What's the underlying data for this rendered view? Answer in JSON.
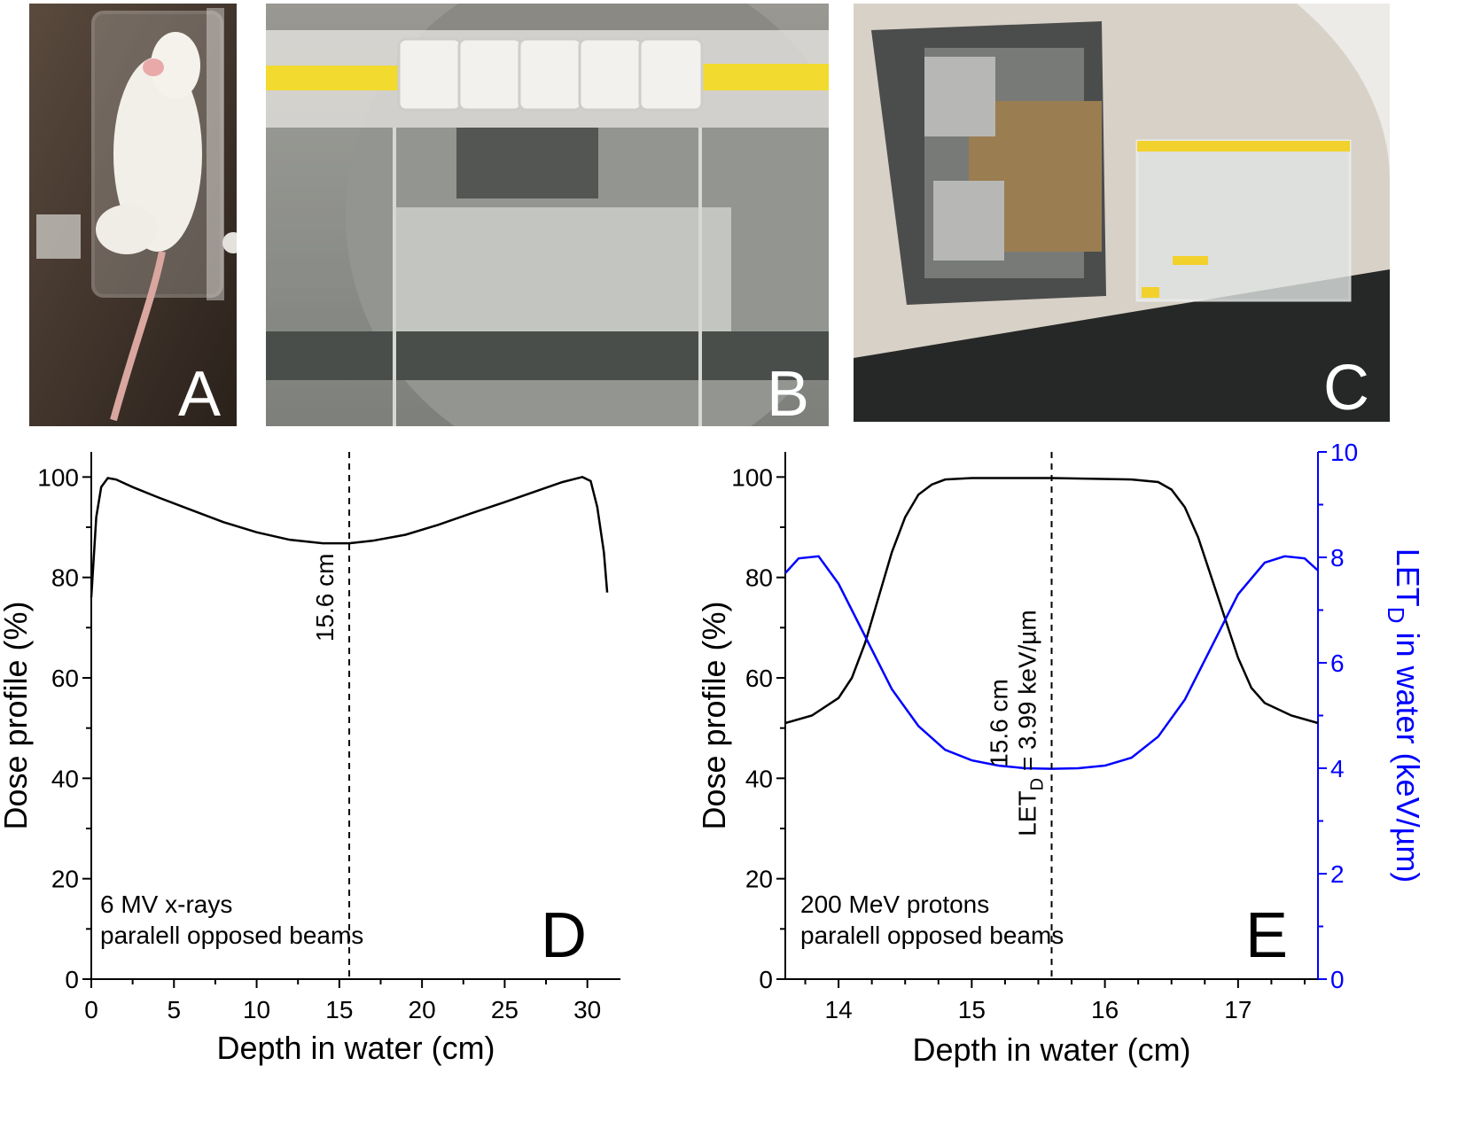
{
  "photos": [
    {
      "letter": "A"
    },
    {
      "letter": "B"
    },
    {
      "letter": "C"
    }
  ],
  "chart_data": [
    {
      "type": "line",
      "panel": "D",
      "xlabel": "Depth in water (cm)",
      "ylabel": "Dose profile (%)",
      "xlim": [
        0,
        32
      ],
      "ylim": [
        0,
        105
      ],
      "xticks": [
        0,
        5,
        10,
        15,
        20,
        25,
        30
      ],
      "yticks": [
        0,
        20,
        40,
        60,
        80,
        100
      ],
      "annotations": [
        "6 MV x-rays",
        "paralell opposed beams"
      ],
      "vline": {
        "x": 15.6,
        "label": "15.6 cm"
      },
      "series": [
        {
          "color": "#000000",
          "x": [
            0,
            0.3,
            0.6,
            1.0,
            1.5,
            2.5,
            4,
            6,
            8,
            10,
            12,
            14,
            15.6,
            17,
            19,
            21,
            23,
            25,
            27,
            28.5,
            29.7,
            30.2,
            30.6,
            31.0,
            31.2
          ],
          "y": [
            76,
            92,
            98,
            99.8,
            99.5,
            98,
            96,
            93.5,
            91,
            89,
            87.5,
            86.8,
            86.8,
            87.3,
            88.5,
            90.5,
            92.8,
            95,
            97.3,
            99,
            100,
            99.2,
            94,
            85,
            77
          ]
        }
      ]
    },
    {
      "type": "line",
      "panel": "E",
      "xlabel": "Depth in water (cm)",
      "ylabel": "Dose profile (%)",
      "y2label_main": "LET",
      "y2label_sub": "D",
      "y2label_rest": " in water (keV/µm)",
      "xlim": [
        13.6,
        17.6
      ],
      "ylim": [
        0,
        105
      ],
      "y2lim": [
        0,
        10
      ],
      "xticks": [
        14,
        15,
        16,
        17
      ],
      "yticks": [
        0,
        20,
        40,
        60,
        80,
        100
      ],
      "y2ticks": [
        0,
        2,
        4,
        6,
        8,
        10
      ],
      "annotations": [
        "200 MeV protons",
        "paralell opposed beams"
      ],
      "vline": {
        "x": 15.6,
        "label1": "15.6 cm",
        "label2_main": "LET",
        "label2_sub": "D",
        "label2_rest": " = 3.99 keV/µm"
      },
      "series": [
        {
          "axis": "left",
          "color": "#000000",
          "x": [
            13.6,
            13.8,
            14.0,
            14.1,
            14.2,
            14.3,
            14.4,
            14.5,
            14.6,
            14.7,
            14.8,
            15.0,
            15.6,
            16.2,
            16.4,
            16.5,
            16.6,
            16.7,
            16.8,
            16.9,
            17.0,
            17.1,
            17.2,
            17.4,
            17.6
          ],
          "y": [
            51,
            52.5,
            56,
            60,
            67,
            76,
            85,
            92,
            96.5,
            98.5,
            99.5,
            99.8,
            99.8,
            99.5,
            99,
            97.5,
            94,
            88,
            80,
            72,
            64,
            58,
            55,
            52.5,
            51
          ]
        },
        {
          "axis": "right",
          "color": "#0000ff",
          "x": [
            13.6,
            13.7,
            13.85,
            14.0,
            14.2,
            14.4,
            14.6,
            14.8,
            15.0,
            15.2,
            15.4,
            15.6,
            15.8,
            16.0,
            16.2,
            16.4,
            16.6,
            16.8,
            17.0,
            17.2,
            17.35,
            17.5,
            17.6
          ],
          "y": [
            7.7,
            7.98,
            8.02,
            7.5,
            6.5,
            5.5,
            4.8,
            4.35,
            4.15,
            4.05,
            4.0,
            3.99,
            4.0,
            4.05,
            4.2,
            4.6,
            5.3,
            6.3,
            7.3,
            7.9,
            8.02,
            7.98,
            7.75
          ]
        }
      ]
    }
  ]
}
